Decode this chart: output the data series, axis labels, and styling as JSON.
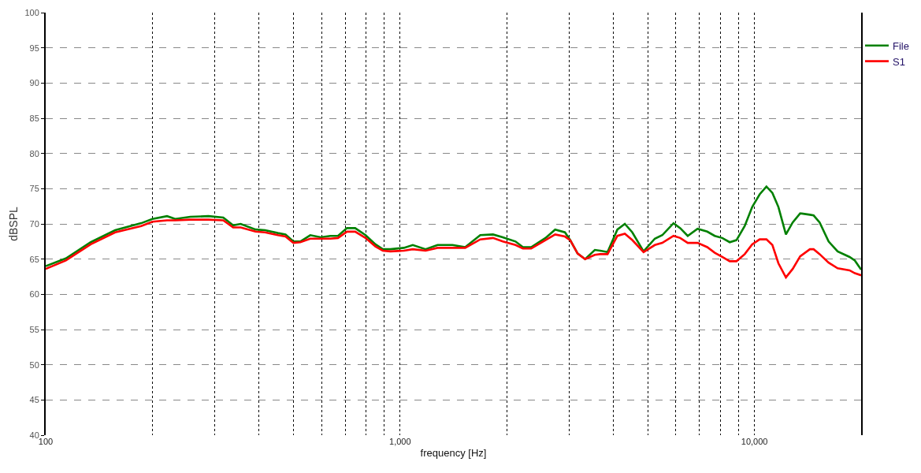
{
  "chart_data": {
    "type": "line",
    "xlabel": "frequency [Hz]",
    "ylabel": "dBSPL",
    "log": "x",
    "xlim": [
      100,
      20000
    ],
    "ylim": [
      40,
      100
    ],
    "xticks": [
      100,
      {
        "value": 200,
        "label": null
      },
      {
        "value": 300,
        "label": null
      },
      {
        "value": 400,
        "label": null
      },
      {
        "value": 500,
        "label": null
      },
      {
        "value": 600,
        "label": null
      },
      {
        "value": 700,
        "label": null
      },
      {
        "value": 800,
        "label": null
      },
      {
        "value": 900,
        "label": null
      },
      {
        "value": 1000,
        "label": "1,000"
      },
      {
        "value": 2000,
        "label": null
      },
      {
        "value": 3000,
        "label": null
      },
      {
        "value": 4000,
        "label": null
      },
      {
        "value": 5000,
        "label": null
      },
      {
        "value": 6000,
        "label": null
      },
      {
        "value": 7000,
        "label": null
      },
      {
        "value": 8000,
        "label": null
      },
      {
        "value": 9000,
        "label": null
      },
      {
        "value": 10000,
        "label": "10,000"
      }
    ],
    "yticks": [
      40,
      45,
      50,
      55,
      60,
      65,
      70,
      75,
      80,
      85,
      90,
      95,
      100
    ],
    "grid": true,
    "legend": "top right",
    "marker": "none",
    "line_style": "solid",
    "x": [
      100,
      114,
      134,
      157,
      186,
      200,
      220,
      232,
      256,
      288,
      317,
      338,
      355,
      391,
      416,
      452,
      475,
      500,
      523,
      558,
      597,
      636,
      668,
      708,
      747,
      799,
      852,
      894,
      939,
      1025,
      1086,
      1180,
      1276,
      1406,
      1527,
      1684,
      1829,
      1949,
      2117,
      2222,
      2344,
      2572,
      2739,
      2919,
      3020,
      3170,
      3328,
      3545,
      3668,
      3850,
      4104,
      4308,
      4522,
      4865,
      5235,
      5495,
      5911,
      6174,
      6483,
      6909,
      7358,
      7726,
      8111,
      8516,
      8898,
      9387,
      9855,
      10346,
      10810,
      11236,
      11685,
      12268,
      12820,
      13459,
      14338,
      14690,
      15276,
      16192,
      17169,
      18557,
      19199,
      20000
    ],
    "series": [
      {
        "name": "File",
        "color": "#008000",
        "values": [
          64.0,
          65.1,
          67.4,
          69.1,
          70.1,
          70.7,
          71.1,
          70.7,
          71.0,
          71.1,
          70.9,
          69.8,
          70.0,
          69.2,
          69.1,
          68.7,
          68.5,
          67.5,
          67.5,
          68.4,
          68.1,
          68.3,
          68.3,
          69.4,
          69.4,
          68.4,
          67.1,
          66.4,
          66.4,
          66.6,
          67.0,
          66.4,
          67.0,
          67.0,
          66.7,
          68.4,
          68.5,
          68.1,
          67.5,
          66.7,
          66.7,
          68.0,
          69.2,
          68.8,
          67.7,
          65.8,
          65.0,
          66.3,
          66.2,
          66.0,
          69.2,
          70.0,
          68.8,
          66.1,
          67.9,
          68.4,
          70.1,
          69.4,
          68.3,
          69.3,
          68.9,
          68.3,
          68.0,
          67.4,
          67.7,
          69.7,
          72.4,
          74.2,
          75.3,
          74.4,
          72.4,
          68.5,
          70.2,
          71.5,
          71.3,
          71.2,
          70.2,
          67.5,
          66.1,
          65.3,
          64.8,
          63.5
        ]
      },
      {
        "name": "S1",
        "color": "#ff0000",
        "values": [
          63.6,
          64.8,
          67.1,
          68.8,
          69.7,
          70.3,
          70.5,
          70.5,
          70.6,
          70.6,
          70.5,
          69.5,
          69.5,
          68.9,
          68.8,
          68.4,
          68.2,
          67.3,
          67.4,
          67.9,
          67.9,
          67.9,
          68.0,
          68.9,
          68.9,
          68.0,
          66.8,
          66.2,
          66.1,
          66.2,
          66.4,
          66.2,
          66.6,
          66.6,
          66.6,
          67.8,
          68.0,
          67.5,
          67.0,
          66.5,
          66.5,
          67.7,
          68.5,
          68.2,
          67.7,
          65.8,
          65.0,
          65.6,
          65.7,
          65.7,
          68.3,
          68.6,
          67.7,
          66.0,
          67.0,
          67.3,
          68.3,
          68.0,
          67.3,
          67.3,
          66.7,
          65.9,
          65.3,
          64.7,
          64.7,
          65.7,
          67.1,
          67.8,
          67.8,
          67.0,
          64.4,
          62.4,
          63.6,
          65.4,
          66.4,
          66.4,
          65.7,
          64.5,
          63.7,
          63.4,
          63.0,
          62.7
        ]
      }
    ]
  }
}
